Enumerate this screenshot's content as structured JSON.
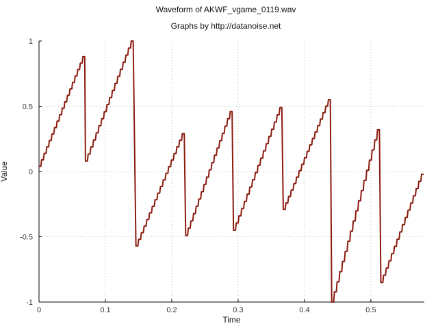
{
  "chart_data": {
    "type": "line",
    "title": "Waveform of AKWF_vgame_0119.wav",
    "subtitle": "Graphs by http://datanoise.net",
    "xlabel": "Time",
    "ylabel": "Value",
    "xlim": [
      0,
      0.5805
    ],
    "ylim": [
      -1,
      1
    ],
    "grid": true,
    "colors": {
      "line": "#8b1a0e",
      "grid": "#bcbcbc",
      "axis": "#000000"
    },
    "x_ticks": [
      {
        "value": 0,
        "label": "0"
      },
      {
        "value": 0.1,
        "label": "0.1"
      },
      {
        "value": 0.2,
        "label": "0.2"
      },
      {
        "value": 0.3,
        "label": "0.3"
      },
      {
        "value": 0.4,
        "label": "0.4"
      },
      {
        "value": 0.5,
        "label": "0.5"
      }
    ],
    "y_ticks": [
      {
        "value": -1,
        "label": "-1"
      },
      {
        "value": -0.5,
        "label": "-0.5"
      },
      {
        "value": 0,
        "label": "0"
      },
      {
        "value": 0.5,
        "label": "0.5"
      },
      {
        "value": 1,
        "label": "1"
      }
    ],
    "series": [
      {
        "segments": [
          {
            "x_start": 0.0,
            "x_end": 0.07,
            "y_start": 0.04,
            "y_end": 0.88,
            "steps": 18
          },
          {
            "x_start": 0.07,
            "x_end": 0.143,
            "y_start": 0.08,
            "y_end": 1.0,
            "steps": 18
          },
          {
            "x_start": 0.146,
            "x_end": 0.22,
            "y_start": -0.57,
            "y_end": 0.29,
            "steps": 18
          },
          {
            "x_start": 0.221,
            "x_end": 0.292,
            "y_start": -0.49,
            "y_end": 0.46,
            "steps": 18
          },
          {
            "x_start": 0.293,
            "x_end": 0.367,
            "y_start": -0.45,
            "y_end": 0.49,
            "steps": 18
          },
          {
            "x_start": 0.368,
            "x_end": 0.44,
            "y_start": -0.29,
            "y_end": 0.55,
            "steps": 18
          },
          {
            "x_start": 0.441,
            "x_end": 0.514,
            "y_start": -1.0,
            "y_end": 0.32,
            "steps": 18
          },
          {
            "x_start": 0.515,
            "x_end": 0.5805,
            "y_start": -0.85,
            "y_end": -0.02,
            "steps": 16
          }
        ]
      }
    ]
  }
}
